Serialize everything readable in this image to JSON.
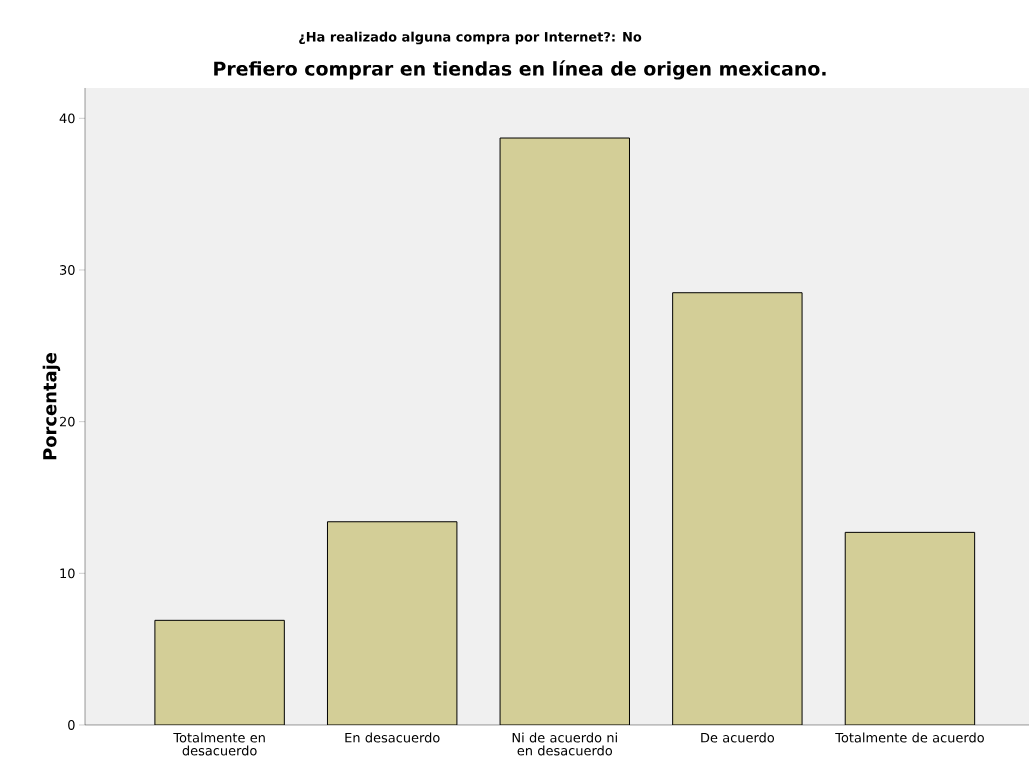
{
  "chart_data": {
    "type": "bar",
    "subtitle": "¿Ha realizado alguna compra por Internet?: No",
    "title": "Prefiero comprar en tiendas en línea de origen mexicano.",
    "ylabel": "Porcentaje",
    "categories": [
      "Totalmente en desacuerdo",
      "En desacuerdo",
      "Ni de acuerdo ni en desacuerdo",
      "De acuerdo",
      "Totalmente de acuerdo"
    ],
    "values": [
      6.9,
      13.4,
      38.7,
      28.5,
      12.7
    ],
    "color": "#d3ce97",
    "ylim": [
      0,
      42
    ],
    "yticks": [
      0,
      10,
      20,
      30,
      40
    ]
  }
}
